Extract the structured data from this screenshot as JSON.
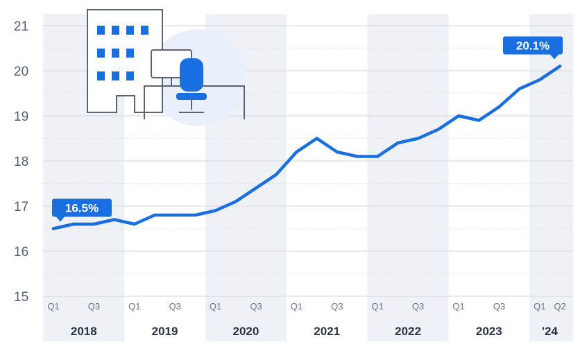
{
  "chart_data": {
    "type": "line",
    "title": "",
    "xlabel": "",
    "ylabel": "",
    "ylim": [
      15,
      21
    ],
    "yticks": [
      15,
      16,
      17,
      18,
      19,
      20,
      21
    ],
    "grid": true,
    "series": [
      {
        "name": "",
        "color": "#1a6fe0",
        "values": [
          16.5,
          16.6,
          16.6,
          16.7,
          16.6,
          16.8,
          16.8,
          16.8,
          16.9,
          17.1,
          17.4,
          17.7,
          18.2,
          18.5,
          18.2,
          18.1,
          18.1,
          18.4,
          18.5,
          18.7,
          19.0,
          18.9,
          19.2,
          19.6,
          19.8,
          20.1
        ]
      }
    ],
    "quarter_labels": [
      "Q1",
      "",
      "Q3",
      "",
      "Q1",
      "",
      "Q3",
      "",
      "Q1",
      "",
      "Q3",
      "",
      "Q1",
      "",
      "Q3",
      "",
      "Q1",
      "",
      "Q3",
      "",
      "Q1",
      "",
      "Q3",
      "",
      "Q1",
      "Q2"
    ],
    "years": [
      {
        "label": "2018",
        "quarters": 4
      },
      {
        "label": "2019",
        "quarters": 4
      },
      {
        "label": "2020",
        "quarters": 4
      },
      {
        "label": "2021",
        "quarters": 4
      },
      {
        "label": "2022",
        "quarters": 4
      },
      {
        "label": "2023",
        "quarters": 4
      },
      {
        "label": "'24",
        "quarters": 2
      }
    ],
    "annotations": [
      {
        "label": "16.5%",
        "index": 0
      },
      {
        "label": "20.1%",
        "index": 25
      }
    ]
  },
  "colors": {
    "line": "#1a6fe0",
    "callout": "#1a6fe0",
    "band": "#eef1f5",
    "grid": "#d9dde3"
  },
  "illustration": {
    "icon": "office-building-with-desk-and-chair-icon"
  }
}
